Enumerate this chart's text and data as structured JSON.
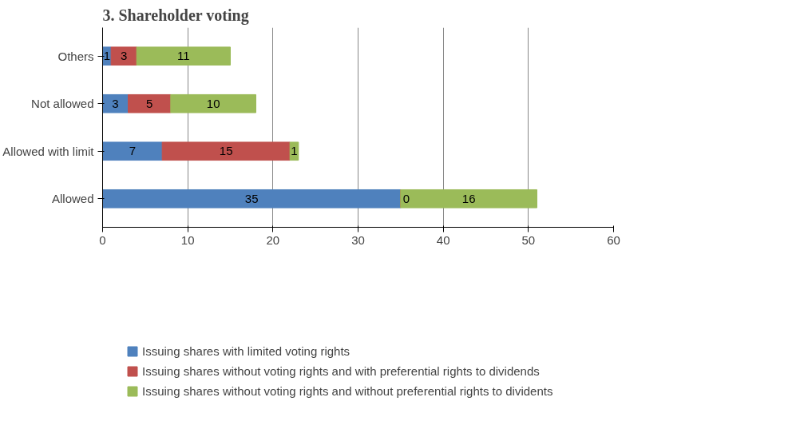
{
  "chart_data": {
    "type": "bar",
    "orientation": "horizontal",
    "stacked": true,
    "title": "3. Shareholder voting",
    "categories": [
      "Others",
      "Not allowed",
      "Allowed with limit",
      "Allowed"
    ],
    "series": [
      {
        "name": "Issuing shares with limited voting rights",
        "color": "#4f81bd",
        "values": [
          1,
          3,
          7,
          35
        ]
      },
      {
        "name": "Issuing shares without voting rights and with preferential rights to dividends",
        "color": "#c0504d",
        "values": [
          3,
          5,
          15,
          0
        ]
      },
      {
        "name": "Issuing shares without voting rights and without preferential rights to dividents",
        "color": "#9bbb59",
        "values": [
          11,
          10,
          1,
          16
        ]
      }
    ],
    "xlim": [
      0,
      60
    ],
    "xticks": [
      0,
      10,
      20,
      30,
      40,
      50,
      60
    ],
    "grid": "x",
    "legend": "bottom",
    "data_labels": true
  }
}
